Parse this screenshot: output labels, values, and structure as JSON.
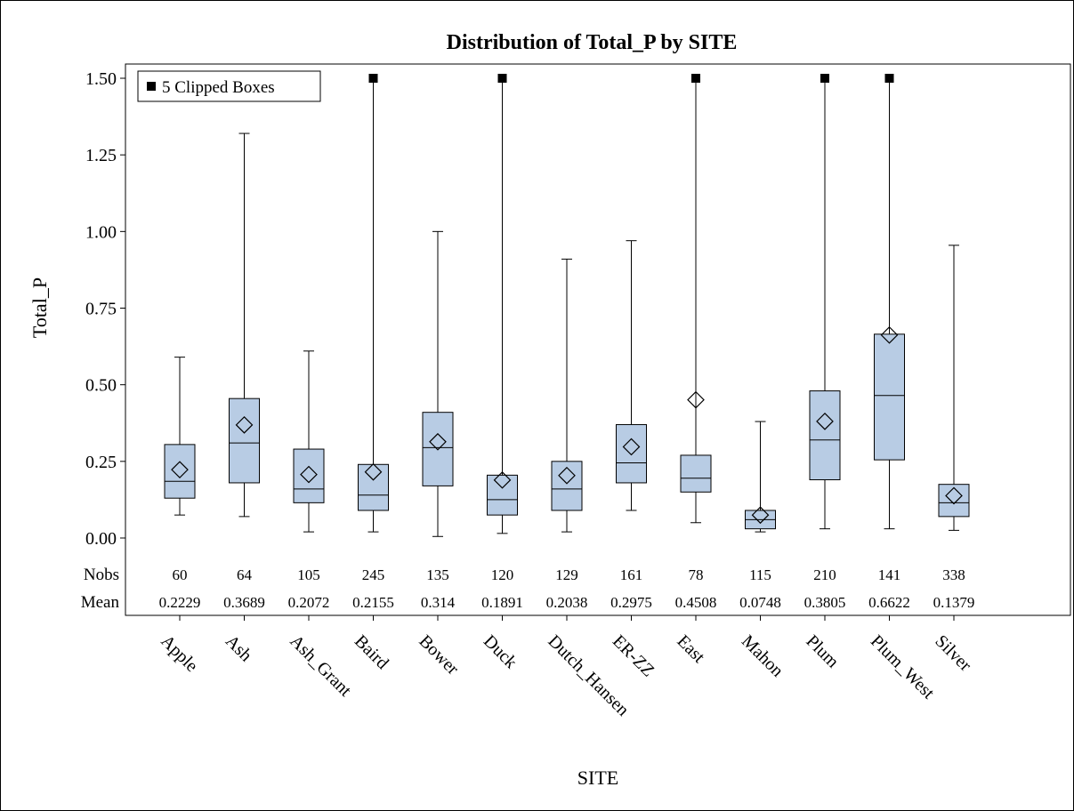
{
  "chart_data": {
    "type": "box",
    "title": "Distribution of Total_P by SITE",
    "xlabel": "SITE",
    "ylabel": "Total_P",
    "ylim": [
      0,
      1.5
    ],
    "yticks": [
      "0.00",
      "0.25",
      "0.50",
      "0.75",
      "1.00",
      "1.25",
      "1.50"
    ],
    "legend": {
      "position": "top-left",
      "label": "5 Clipped Boxes"
    },
    "colors": {
      "box_fill": "#b8cce4",
      "line": "#000000"
    },
    "stat_labels": {
      "nobs": "Nobs",
      "mean": "Mean"
    },
    "categories": [
      "Apple",
      "Ash",
      "Ash_Grant",
      "Baird",
      "Bower",
      "Duck",
      "Dutch_Hansen",
      "ER-ZZ",
      "East",
      "Mahon",
      "Plum",
      "Plum_West",
      "Silver"
    ],
    "boxes": [
      {
        "site": "Apple",
        "min": 0.075,
        "q1": 0.13,
        "median": 0.185,
        "q3": 0.305,
        "max": 0.59,
        "mean": 0.2229,
        "nobs": "60",
        "mean_label": "0.2229",
        "clipped": false
      },
      {
        "site": "Ash",
        "min": 0.07,
        "q1": 0.18,
        "median": 0.31,
        "q3": 0.455,
        "max": 1.32,
        "mean": 0.3689,
        "nobs": "64",
        "mean_label": "0.3689",
        "clipped": false
      },
      {
        "site": "Ash_Grant",
        "min": 0.02,
        "q1": 0.115,
        "median": 0.16,
        "q3": 0.29,
        "max": 0.61,
        "mean": 0.2072,
        "nobs": "105",
        "mean_label": "0.2072",
        "clipped": false
      },
      {
        "site": "Baird",
        "min": 0.02,
        "q1": 0.09,
        "median": 0.14,
        "q3": 0.24,
        "max": 1.5,
        "mean": 0.2155,
        "nobs": "245",
        "mean_label": "0.2155",
        "clipped": true
      },
      {
        "site": "Bower",
        "min": 0.005,
        "q1": 0.17,
        "median": 0.295,
        "q3": 0.41,
        "max": 1.0,
        "mean": 0.314,
        "nobs": "135",
        "mean_label": "0.314",
        "clipped": false
      },
      {
        "site": "Duck",
        "min": 0.015,
        "q1": 0.075,
        "median": 0.125,
        "q3": 0.205,
        "max": 1.5,
        "mean": 0.1891,
        "nobs": "120",
        "mean_label": "0.1891",
        "clipped": true
      },
      {
        "site": "Dutch_Hansen",
        "min": 0.02,
        "q1": 0.09,
        "median": 0.16,
        "q3": 0.25,
        "max": 0.91,
        "mean": 0.2038,
        "nobs": "129",
        "mean_label": "0.2038",
        "clipped": false
      },
      {
        "site": "ER-ZZ",
        "min": 0.09,
        "q1": 0.18,
        "median": 0.245,
        "q3": 0.37,
        "max": 0.97,
        "mean": 0.2975,
        "nobs": "161",
        "mean_label": "0.2975",
        "clipped": false
      },
      {
        "site": "East",
        "min": 0.05,
        "q1": 0.15,
        "median": 0.195,
        "q3": 0.27,
        "max": 1.5,
        "mean": 0.4508,
        "nobs": "78",
        "mean_label": "0.4508",
        "clipped": true
      },
      {
        "site": "Mahon",
        "min": 0.02,
        "q1": 0.03,
        "median": 0.06,
        "q3": 0.09,
        "max": 0.38,
        "mean": 0.0748,
        "nobs": "115",
        "mean_label": "0.0748",
        "clipped": false
      },
      {
        "site": "Plum",
        "min": 0.03,
        "q1": 0.19,
        "median": 0.32,
        "q3": 0.48,
        "max": 1.5,
        "mean": 0.3805,
        "nobs": "210",
        "mean_label": "0.3805",
        "clipped": true
      },
      {
        "site": "Plum_West",
        "min": 0.03,
        "q1": 0.255,
        "median": 0.465,
        "q3": 0.665,
        "max": 1.5,
        "mean": 0.6622,
        "nobs": "141",
        "mean_label": "0.6622",
        "clipped": true
      },
      {
        "site": "Silver",
        "min": 0.025,
        "q1": 0.07,
        "median": 0.115,
        "q3": 0.175,
        "max": 0.955,
        "mean": 0.1379,
        "nobs": "338",
        "mean_label": "0.1379",
        "clipped": false
      }
    ]
  }
}
